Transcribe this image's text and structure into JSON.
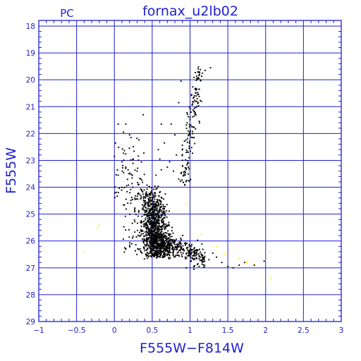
{
  "header": {
    "left_label": "PC",
    "title": "fornax_u2lb02"
  },
  "chart_data": {
    "type": "scatter",
    "title": "fornax_u2lb02",
    "xlabel": "F555W−F814W",
    "ylabel": "F555W",
    "xlim": [
      -1,
      3
    ],
    "ylim": [
      18,
      29
    ],
    "y_inverted": true,
    "grid": true,
    "xticks": [
      -1,
      -0.5,
      0,
      0.5,
      1,
      1.5,
      2,
      2.5,
      3
    ],
    "xtick_labels": [
      "−1",
      "−0.5",
      "0",
      "0.5",
      "1",
      "1.5",
      "2",
      "2.5",
      "3"
    ],
    "yticks": [
      18,
      19,
      20,
      21,
      22,
      23,
      24,
      25,
      26,
      27,
      28,
      29
    ],
    "ytick_labels": [
      "18",
      "19",
      "20",
      "21",
      "22",
      "23",
      "24",
      "25",
      "26",
      "27",
      "28",
      "29"
    ],
    "colors": {
      "frame": "#1f1fd0",
      "black_points": "#000000",
      "yellow_points": "#ffee00"
    },
    "series": [
      {
        "color": "black",
        "structure": {
          "main_sequence_turnoff": {
            "x_range": [
              0.35,
              0.8
            ],
            "y_range": [
              23.9,
              26.6
            ],
            "approx_count": 1100
          },
          "subgiant_branch": {
            "x_range": [
              0.6,
              1.2
            ],
            "y_range": [
              25.9,
              27.0
            ]
          },
          "red_giant_branch": {
            "x_range": [
              0.85,
              1.2
            ],
            "y_range": [
              19.5,
              24.0
            ]
          },
          "blue_stragglers": {
            "x_range": [
              0.0,
              0.4
            ],
            "y_range": [
              21.6,
              24.5
            ]
          }
        },
        "points": [
          [
            0.05,
            21.65
          ],
          [
            0.15,
            21.65
          ],
          [
            0.12,
            21.95
          ],
          [
            0.2,
            22.05
          ],
          [
            0.22,
            22.15
          ],
          [
            0.38,
            21.3
          ],
          [
            0.62,
            21.65
          ],
          [
            0.75,
            21.65
          ],
          [
            0.0,
            22.85
          ],
          [
            0.1,
            23.05
          ],
          [
            0.15,
            23.25
          ],
          [
            0.25,
            22.95
          ],
          [
            0.3,
            23.4
          ],
          [
            0.18,
            23.35
          ],
          [
            0.05,
            23.55
          ],
          [
            0.58,
            22.6
          ],
          [
            0.6,
            22.95
          ],
          [
            0.66,
            22.35
          ],
          [
            0.7,
            23.25
          ],
          [
            0.78,
            23.4
          ],
          [
            0.73,
            23.05
          ],
          [
            0.82,
            22.8
          ],
          [
            0.8,
            22.05
          ],
          [
            0.62,
            23.35
          ],
          [
            0.55,
            23.55
          ],
          [
            1.2,
            19.65
          ],
          [
            1.27,
            19.55
          ],
          [
            0.88,
            20.05
          ],
          [
            1.07,
            20.35
          ],
          [
            1.1,
            20.55
          ],
          [
            1.02,
            20.55
          ],
          [
            1.15,
            20.8
          ],
          [
            0.85,
            20.85
          ],
          [
            0.95,
            22.7
          ],
          [
            0.9,
            23.2
          ],
          [
            0.92,
            23.5
          ],
          [
            0.85,
            23.7
          ],
          [
            0.98,
            23.75
          ],
          [
            1.25,
            26.7
          ],
          [
            1.3,
            26.45
          ],
          [
            1.35,
            26.6
          ],
          [
            1.42,
            26.8
          ],
          [
            1.5,
            26.95
          ],
          [
            1.57,
            27.0
          ],
          [
            1.65,
            26.9
          ],
          [
            1.72,
            26.8
          ],
          [
            1.85,
            26.9
          ],
          [
            1.98,
            26.75
          ],
          [
            1.05,
            27.05
          ],
          [
            0.95,
            27.0
          ],
          [
            1.12,
            26.95
          ]
        ]
      },
      {
        "color": "yellow",
        "points": [
          [
            -0.2,
            25.4
          ],
          [
            -0.22,
            25.5
          ],
          [
            -0.4,
            26.4
          ],
          [
            0.95,
            24.6
          ],
          [
            1.15,
            25.75
          ],
          [
            1.45,
            26.5
          ],
          [
            1.65,
            26.65
          ],
          [
            1.75,
            26.8
          ],
          [
            1.85,
            26.85
          ],
          [
            2.05,
            26.4
          ],
          [
            2.07,
            27.4
          ],
          [
            1.35,
            26.2
          ]
        ]
      }
    ]
  }
}
